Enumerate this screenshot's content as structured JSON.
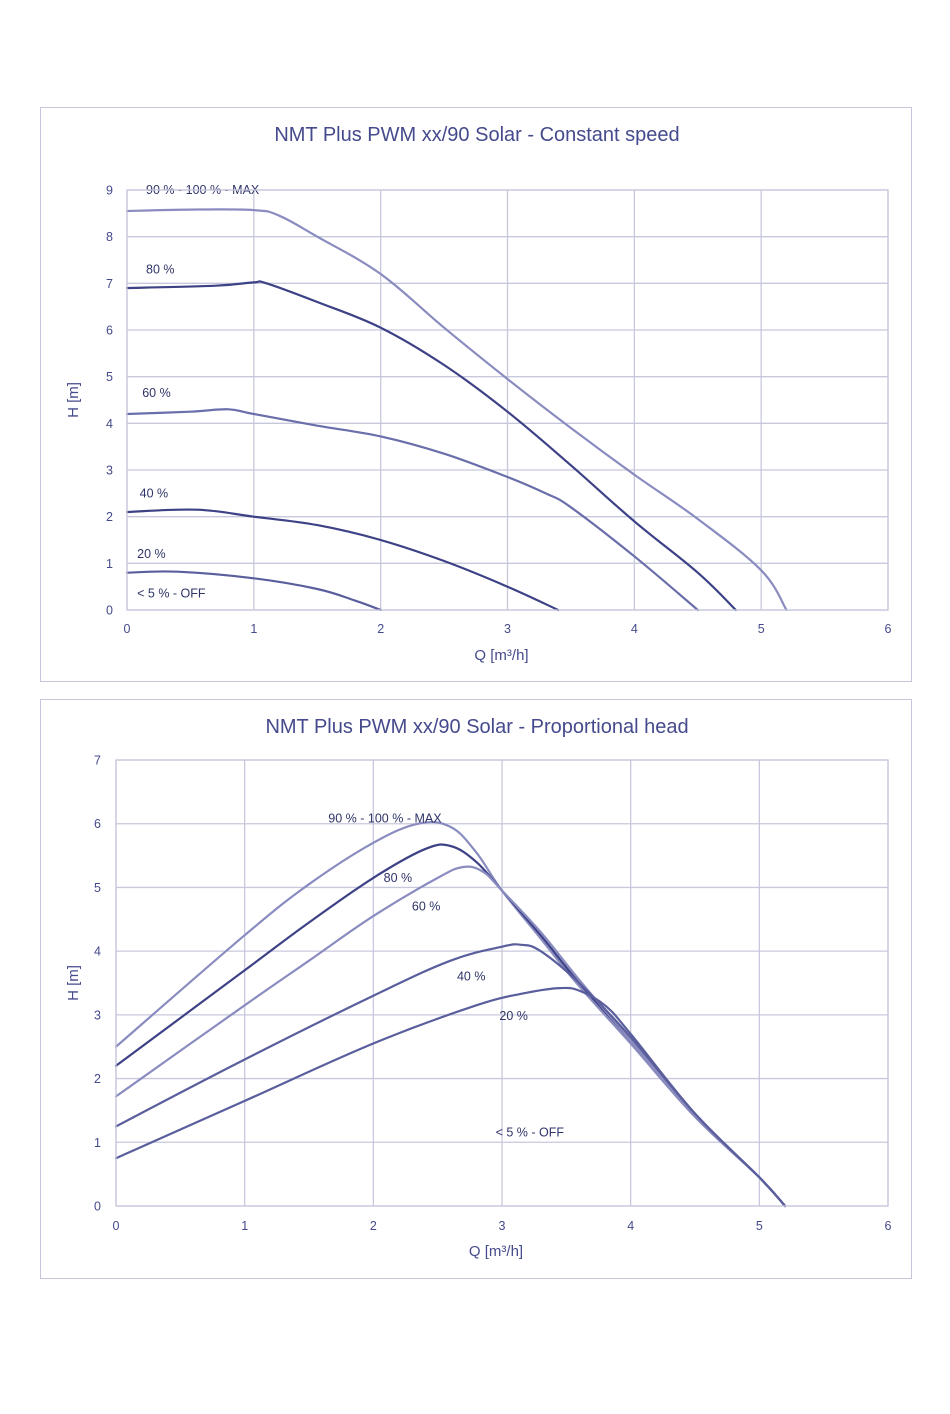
{
  "colors": {
    "title": "#454a8c",
    "grid": "#c8c8dd",
    "frame": "#c5c5dc",
    "curve_dark": "#3d4185",
    "curve_mid": "#5a5e9c",
    "curve_light": "#8a8cc0"
  },
  "chart_data": [
    {
      "type": "line",
      "title": "NMT Plus PWM xx/90 Solar - Constant speed",
      "xlabel": "Q [m³/h]",
      "ylabel": "H [m]",
      "xlim": [
        0,
        6
      ],
      "ylim": [
        0,
        9
      ],
      "xticks": [
        "0",
        "1",
        "2",
        "3",
        "4",
        "5",
        "6"
      ],
      "yticks": [
        "0",
        "1",
        "2",
        "3",
        "4",
        "5",
        "6",
        "7",
        "8",
        "9"
      ],
      "grid": true,
      "series": [
        {
          "name": "90 % - 100 % - MAX",
          "color": "#8a8cc0",
          "x": [
            0,
            0.5,
            1.0,
            1.2,
            1.5,
            2.0,
            2.5,
            3.0,
            3.5,
            4.0,
            4.5,
            5.0,
            5.2
          ],
          "y": [
            8.55,
            8.58,
            8.57,
            8.45,
            8.0,
            7.2,
            6.05,
            4.95,
            3.9,
            2.9,
            1.95,
            0.85,
            0.0
          ],
          "label_pos": [
            0.15,
            9.0
          ]
        },
        {
          "name": "80 %",
          "color": "#3d4185",
          "x": [
            0,
            0.7,
            1.0,
            1.1,
            1.5,
            2.0,
            2.5,
            3.0,
            3.5,
            4.0,
            4.5,
            4.8
          ],
          "y": [
            6.9,
            6.95,
            7.02,
            7.0,
            6.6,
            6.05,
            5.25,
            4.25,
            3.1,
            1.9,
            0.8,
            0.0
          ],
          "label_pos": [
            0.15,
            7.3
          ]
        },
        {
          "name": "60 %",
          "color": "#6a6eaa",
          "x": [
            0,
            0.5,
            0.8,
            1.0,
            1.5,
            2.0,
            2.5,
            3.0,
            3.3,
            3.5,
            4.0,
            4.5
          ],
          "y": [
            4.2,
            4.25,
            4.3,
            4.2,
            3.95,
            3.72,
            3.35,
            2.85,
            2.5,
            2.2,
            1.15,
            0.0
          ],
          "label_pos": [
            0.12,
            4.65
          ]
        },
        {
          "name": "40 %",
          "color": "#3d4185",
          "x": [
            0,
            0.55,
            1.0,
            1.5,
            2.0,
            2.5,
            3.0,
            3.4
          ],
          "y": [
            2.1,
            2.15,
            2.0,
            1.82,
            1.5,
            1.05,
            0.5,
            0.0
          ],
          "label_pos": [
            0.1,
            2.5
          ]
        },
        {
          "name": "20 %",
          "color": "#5a5e9c",
          "x": [
            0,
            0.4,
            1.0,
            1.5,
            1.8,
            2.0
          ],
          "y": [
            0.8,
            0.82,
            0.68,
            0.45,
            0.2,
            0.0
          ],
          "label_pos": [
            0.08,
            1.2
          ]
        }
      ],
      "annotation": {
        "text": "< 5 % - OFF",
        "pos": [
          0.08,
          0.35
        ]
      }
    },
    {
      "type": "line",
      "title": "NMT Plus PWM xx/90 Solar - Proportional head",
      "xlabel": "Q  [m³/h]",
      "ylabel": "H [m]",
      "xlim": [
        0,
        6
      ],
      "ylim": [
        0,
        7
      ],
      "xticks": [
        "0",
        "1",
        "2",
        "3",
        "4",
        "5",
        "6"
      ],
      "yticks": [
        "0",
        "1",
        "2",
        "3",
        "4",
        "5",
        "6",
        "7"
      ],
      "grid": true,
      "series": [
        {
          "name": "90 % - 100 % - MAX",
          "color": "#8a8cc0",
          "x": [
            0,
            1.0,
            1.5,
            2.0,
            2.35,
            2.6,
            2.8,
            3.0,
            3.3,
            3.6,
            4.0,
            4.5,
            5.0,
            5.2
          ],
          "y": [
            2.5,
            4.25,
            5.05,
            5.7,
            6.0,
            5.95,
            5.55,
            4.95,
            4.2,
            3.45,
            2.55,
            1.4,
            0.45,
            0.0
          ],
          "label_pos": [
            1.65,
            6.08
          ]
        },
        {
          "name": "80 %",
          "color": "#3d4185",
          "x": [
            0,
            1.0,
            1.5,
            2.0,
            2.4,
            2.6,
            2.8,
            3.0,
            3.3,
            3.6,
            4.0,
            4.5,
            5.0,
            5.2
          ],
          "y": [
            2.2,
            3.7,
            4.45,
            5.15,
            5.6,
            5.65,
            5.4,
            4.95,
            4.25,
            3.5,
            2.6,
            1.42,
            0.45,
            0.0
          ],
          "label_pos": [
            2.08,
            5.15
          ]
        },
        {
          "name": "60 %",
          "color": "#8a8cc0",
          "x": [
            0,
            1.0,
            1.5,
            2.0,
            2.5,
            2.7,
            2.85,
            3.0,
            3.3,
            3.6,
            4.0,
            4.5,
            5.0,
            5.2
          ],
          "y": [
            1.72,
            3.15,
            3.85,
            4.55,
            5.15,
            5.32,
            5.25,
            4.95,
            4.3,
            3.55,
            2.6,
            1.42,
            0.45,
            0.0
          ],
          "label_pos": [
            2.3,
            4.7
          ]
        },
        {
          "name": "40 %",
          "color": "#5a5e9c",
          "x": [
            0,
            1.0,
            2.0,
            2.6,
            3.0,
            3.15,
            3.3,
            3.6,
            4.0,
            4.5,
            5.0,
            5.2
          ],
          "y": [
            1.25,
            2.3,
            3.3,
            3.85,
            4.07,
            4.1,
            4.0,
            3.5,
            2.65,
            1.45,
            0.45,
            0.0
          ],
          "label_pos": [
            2.65,
            3.6
          ]
        },
        {
          "name": "20 %",
          "color": "#5a5e9c",
          "x": [
            0,
            1.0,
            2.0,
            2.8,
            3.2,
            3.45,
            3.6,
            3.8,
            4.0,
            4.5,
            5.0,
            5.2
          ],
          "y": [
            0.75,
            1.65,
            2.55,
            3.15,
            3.35,
            3.42,
            3.38,
            3.15,
            2.7,
            1.45,
            0.45,
            0.0
          ],
          "label_pos": [
            2.98,
            2.98
          ]
        }
      ],
      "annotation": {
        "text": "< 5 % - OFF",
        "pos": [
          2.95,
          1.15
        ]
      }
    }
  ]
}
